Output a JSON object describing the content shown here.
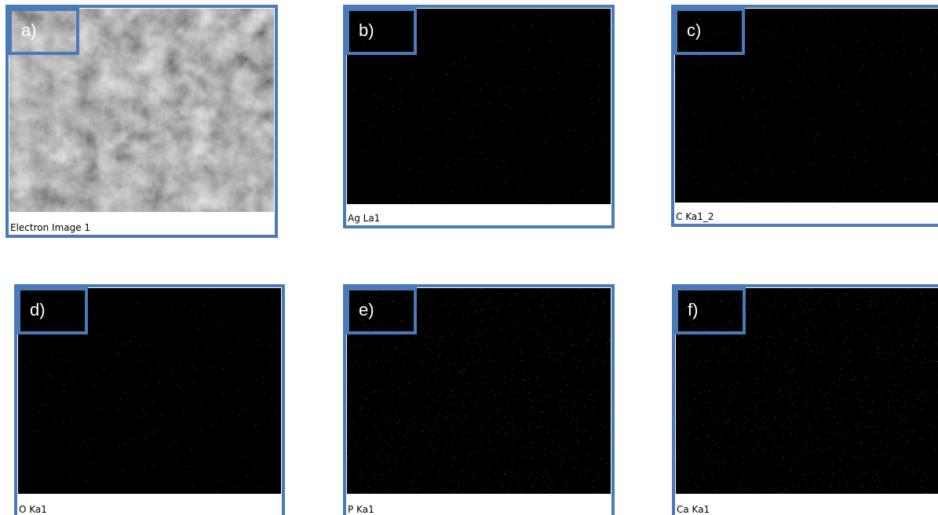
{
  "panels": [
    {
      "label": "a)",
      "caption": "Electron Image 1"
    },
    {
      "label": "b)",
      "caption": "Ag La1"
    },
    {
      "label": "c)",
      "caption": "C Ka1_2"
    },
    {
      "label": "d)",
      "caption": "O Ka1"
    },
    {
      "label": "e)",
      "caption": "P Ka1"
    },
    {
      "label": "f)",
      "caption": "Ca Ka1"
    }
  ]
}
